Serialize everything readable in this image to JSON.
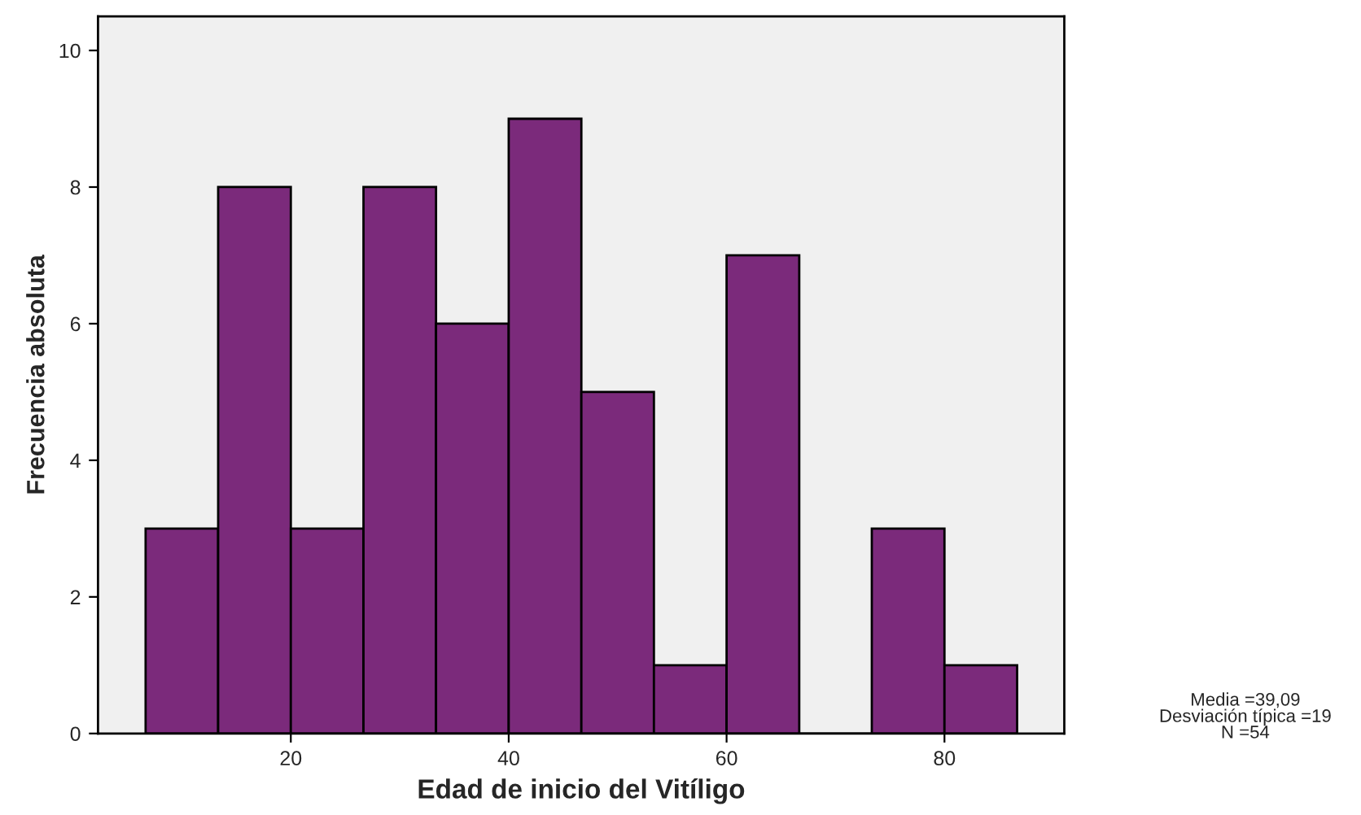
{
  "chart_data": {
    "type": "histogram",
    "xlabel": "Edad de inicio del Vitíligo",
    "ylabel": "Frecuencia absoluta",
    "bins": [
      6.67,
      13.33,
      20,
      26.67,
      33.33,
      40,
      46.67,
      53.33,
      60,
      66.67,
      73.33,
      80,
      86.67
    ],
    "values": [
      3,
      8,
      3,
      8,
      6,
      9,
      5,
      1,
      7,
      0,
      3,
      1
    ],
    "color": "#7b2a7b",
    "xlim": [
      2.3,
      91
    ],
    "xticks": [
      20,
      40,
      60,
      80
    ],
    "ylim": [
      0,
      10.5
    ],
    "yticks": [
      0,
      2,
      4,
      6,
      8,
      10
    ],
    "annotations": [
      "Media =39,09\nDesviación típica =19\nN =54"
    ],
    "grid": false
  }
}
